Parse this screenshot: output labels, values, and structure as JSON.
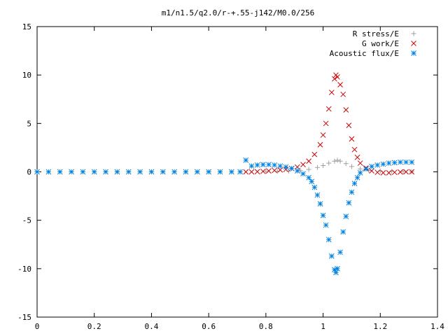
{
  "chart_data": {
    "type": "scatter",
    "title": "m1/n1.5/q2.0/r-+.55-j142/M0.0/256",
    "xlabel": "",
    "ylabel": "",
    "xlim": [
      0,
      1.4
    ],
    "ylim": [
      -15,
      15
    ],
    "xticks": [
      "0",
      "0.2",
      "0.4",
      "0.6",
      "0.8",
      "1",
      "1.2",
      "1.4"
    ],
    "yticks": [
      "-15",
      "-10",
      "-5",
      "0",
      "5",
      "10",
      "15"
    ],
    "legend_position": "top-right",
    "grid": false,
    "series": [
      {
        "name": "R stress/E",
        "marker": "+",
        "color": "#a0a0a0",
        "points": [
          [
            0.8,
            0.05
          ],
          [
            0.84,
            0.05
          ],
          [
            0.88,
            0.08
          ],
          [
            0.92,
            0.15
          ],
          [
            0.95,
            0.25
          ],
          [
            0.98,
            0.45
          ],
          [
            1.0,
            0.65
          ],
          [
            1.02,
            0.9
          ],
          [
            1.04,
            1.1
          ],
          [
            1.05,
            1.2
          ],
          [
            1.06,
            1.1
          ],
          [
            1.08,
            0.85
          ],
          [
            1.1,
            0.55
          ],
          [
            1.13,
            0.3
          ],
          [
            1.16,
            0.15
          ],
          [
            1.2,
            0.08
          ],
          [
            1.24,
            0.05
          ],
          [
            1.28,
            0.03
          ],
          [
            1.31,
            0.02
          ]
        ]
      },
      {
        "name": "G work/E",
        "marker": "x",
        "color": "#cc0000",
        "points": [
          [
            0.73,
            0.0
          ],
          [
            0.75,
            0.0
          ],
          [
            0.77,
            0.02
          ],
          [
            0.79,
            0.05
          ],
          [
            0.81,
            0.1
          ],
          [
            0.83,
            0.15
          ],
          [
            0.85,
            0.2
          ],
          [
            0.87,
            0.25
          ],
          [
            0.89,
            0.35
          ],
          [
            0.91,
            0.5
          ],
          [
            0.93,
            0.75
          ],
          [
            0.95,
            1.1
          ],
          [
            0.97,
            1.8
          ],
          [
            0.99,
            2.8
          ],
          [
            1.0,
            3.8
          ],
          [
            1.01,
            5.0
          ],
          [
            1.02,
            6.5
          ],
          [
            1.03,
            8.2
          ],
          [
            1.04,
            9.6
          ],
          [
            1.045,
            10.0
          ],
          [
            1.05,
            9.8
          ],
          [
            1.06,
            9.0
          ],
          [
            1.07,
            8.0
          ],
          [
            1.08,
            6.4
          ],
          [
            1.09,
            4.8
          ],
          [
            1.1,
            3.4
          ],
          [
            1.11,
            2.3
          ],
          [
            1.12,
            1.5
          ],
          [
            1.13,
            0.9
          ],
          [
            1.15,
            0.4
          ],
          [
            1.17,
            0.1
          ],
          [
            1.19,
            -0.05
          ],
          [
            1.21,
            -0.1
          ],
          [
            1.23,
            -0.1
          ],
          [
            1.25,
            -0.05
          ],
          [
            1.27,
            -0.02
          ],
          [
            1.29,
            0.0
          ],
          [
            1.31,
            0.0
          ]
        ]
      },
      {
        "name": "Acoustic flux/E",
        "marker": "*",
        "color": "#0080e0",
        "points": [
          [
            0.0,
            0.0
          ],
          [
            0.04,
            0.0
          ],
          [
            0.08,
            0.0
          ],
          [
            0.12,
            0.0
          ],
          [
            0.16,
            0.0
          ],
          [
            0.2,
            0.0
          ],
          [
            0.24,
            0.0
          ],
          [
            0.28,
            0.0
          ],
          [
            0.32,
            0.0
          ],
          [
            0.36,
            0.0
          ],
          [
            0.4,
            0.0
          ],
          [
            0.44,
            0.0
          ],
          [
            0.48,
            0.0
          ],
          [
            0.52,
            0.0
          ],
          [
            0.56,
            0.0
          ],
          [
            0.6,
            0.0
          ],
          [
            0.64,
            0.0
          ],
          [
            0.68,
            0.0
          ],
          [
            0.71,
            0.0
          ],
          [
            0.73,
            1.2
          ],
          [
            0.75,
            0.6
          ],
          [
            0.77,
            0.7
          ],
          [
            0.79,
            0.75
          ],
          [
            0.81,
            0.75
          ],
          [
            0.83,
            0.7
          ],
          [
            0.85,
            0.6
          ],
          [
            0.87,
            0.5
          ],
          [
            0.89,
            0.35
          ],
          [
            0.91,
            0.1
          ],
          [
            0.93,
            -0.2
          ],
          [
            0.95,
            -0.6
          ],
          [
            0.96,
            -1.0
          ],
          [
            0.97,
            -1.6
          ],
          [
            0.98,
            -2.4
          ],
          [
            0.99,
            -3.3
          ],
          [
            1.0,
            -4.5
          ],
          [
            1.01,
            -5.5
          ],
          [
            1.02,
            -7.0
          ],
          [
            1.03,
            -8.7
          ],
          [
            1.04,
            -10.1
          ],
          [
            1.045,
            -10.4
          ],
          [
            1.05,
            -10.0
          ],
          [
            1.06,
            -8.3
          ],
          [
            1.07,
            -6.2
          ],
          [
            1.08,
            -4.6
          ],
          [
            1.09,
            -3.2
          ],
          [
            1.1,
            -2.1
          ],
          [
            1.11,
            -1.2
          ],
          [
            1.12,
            -0.6
          ],
          [
            1.13,
            -0.1
          ],
          [
            1.15,
            0.3
          ],
          [
            1.17,
            0.55
          ],
          [
            1.19,
            0.7
          ],
          [
            1.21,
            0.8
          ],
          [
            1.23,
            0.9
          ],
          [
            1.25,
            0.95
          ],
          [
            1.27,
            1.0
          ],
          [
            1.29,
            1.0
          ],
          [
            1.31,
            1.0
          ]
        ]
      }
    ]
  }
}
